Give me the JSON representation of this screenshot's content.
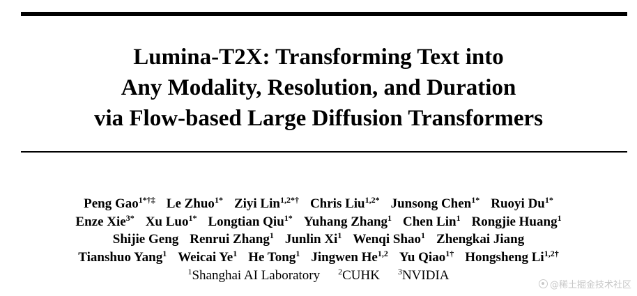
{
  "title_lines": [
    "Lumina-T2X: Transforming Text into",
    "Any Modality, Resolution, and Duration",
    "via Flow-based Large Diffusion Transformers"
  ],
  "authors": [
    [
      {
        "name": "Peng Gao",
        "sup": "1*†‡"
      },
      {
        "name": "Le Zhuo",
        "sup": "1*"
      },
      {
        "name": "Ziyi Lin",
        "sup": "1,2*†"
      },
      {
        "name": "Chris Liu",
        "sup": "1,2*"
      },
      {
        "name": "Junsong Chen",
        "sup": "1*"
      },
      {
        "name": "Ruoyi Du",
        "sup": "1*"
      }
    ],
    [
      {
        "name": "Enze Xie",
        "sup": "3*"
      },
      {
        "name": "Xu Luo",
        "sup": "1*"
      },
      {
        "name": "Longtian Qiu",
        "sup": "1*"
      },
      {
        "name": "Yuhang Zhang",
        "sup": "1"
      },
      {
        "name": "Chen Lin",
        "sup": "1"
      },
      {
        "name": "Rongjie Huang",
        "sup": "1"
      }
    ],
    [
      {
        "name": "Shijie Geng",
        "sup": ""
      },
      {
        "name": "Renrui Zhang",
        "sup": "1"
      },
      {
        "name": "Junlin Xi",
        "sup": "1"
      },
      {
        "name": "Wenqi Shao",
        "sup": "1"
      },
      {
        "name": "Zhengkai Jiang",
        "sup": ""
      }
    ],
    [
      {
        "name": "Tianshuo Yang",
        "sup": "1"
      },
      {
        "name": "Weicai Ye",
        "sup": "1"
      },
      {
        "name": "He Tong",
        "sup": "1"
      },
      {
        "name": "Jingwen He",
        "sup": "1,2"
      },
      {
        "name": "Yu Qiao",
        "sup": "1†"
      },
      {
        "name": "Hongsheng Li",
        "sup": "1,2†"
      }
    ]
  ],
  "affiliations": [
    {
      "sup": "1",
      "name": "Shanghai AI Laboratory"
    },
    {
      "sup": "2",
      "name": "CUHK"
    },
    {
      "sup": "3",
      "name": "NVIDIA"
    }
  ],
  "watermark": {
    "icon": "juejin-logo-icon",
    "text": "@稀土掘金技术社区"
  }
}
